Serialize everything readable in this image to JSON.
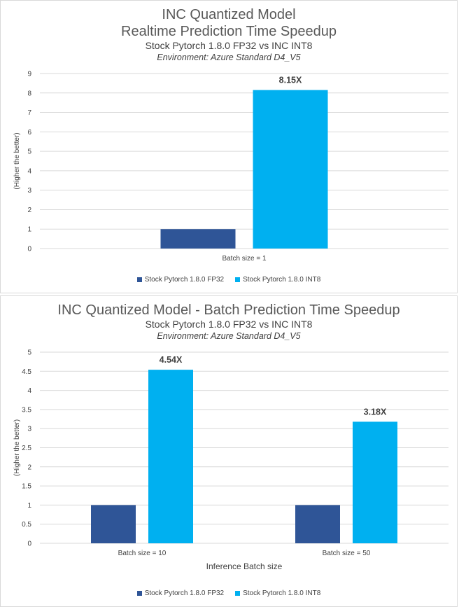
{
  "colors": {
    "fp32": "#2f5597",
    "int8": "#00b0f0",
    "grid": "#d9d9d9",
    "text": "#404040"
  },
  "chart_data": [
    {
      "type": "bar",
      "title": "INC Quantized Model",
      "title_line2": "Realtime Prediction Time Speedup",
      "subtitle": "Stock Pytorch 1.8.0 FP32 vs INC INT8",
      "environment": "Environment:  Azure Standard  D4_V5",
      "ylabel": "(Higher the better)",
      "xlabel": "",
      "ylim": [
        0,
        9
      ],
      "yticks": [
        "0",
        "1",
        "2",
        "3",
        "4",
        "5",
        "6",
        "7",
        "8",
        "9"
      ],
      "grid": true,
      "legend_position": "bottom",
      "categories": [
        "Batch size = 1"
      ],
      "series": [
        {
          "name": "Stock Pytorch 1.8.0 FP32",
          "values": [
            1
          ],
          "labels": [
            ""
          ]
        },
        {
          "name": "Stock Pytorch 1.8.0 INT8",
          "values": [
            8.15
          ],
          "labels": [
            "8.15X"
          ]
        }
      ]
    },
    {
      "type": "bar",
      "title": "INC Quantized Model - Batch Prediction Time Speedup",
      "subtitle": "Stock Pytorch 1.8.0 FP32 vs INC INT8",
      "environment": "Environment:  Azure Standard  D4_V5",
      "ylabel": "(Higher the better)",
      "xlabel": "Inference Batch size",
      "ylim": [
        0,
        5
      ],
      "yticks": [
        "0",
        "0.5",
        "1",
        "1.5",
        "2",
        "2.5",
        "3",
        "3.5",
        "4",
        "4.5",
        "5"
      ],
      "grid": true,
      "legend_position": "bottom",
      "categories": [
        "Batch size = 10",
        "Batch size = 50"
      ],
      "series": [
        {
          "name": "Stock Pytorch 1.8.0 FP32",
          "values": [
            1,
            1
          ],
          "labels": [
            "",
            ""
          ]
        },
        {
          "name": "Stock Pytorch 1.8.0 INT8",
          "values": [
            4.54,
            3.18
          ],
          "labels": [
            "4.54X",
            "3.18X"
          ]
        }
      ]
    }
  ]
}
